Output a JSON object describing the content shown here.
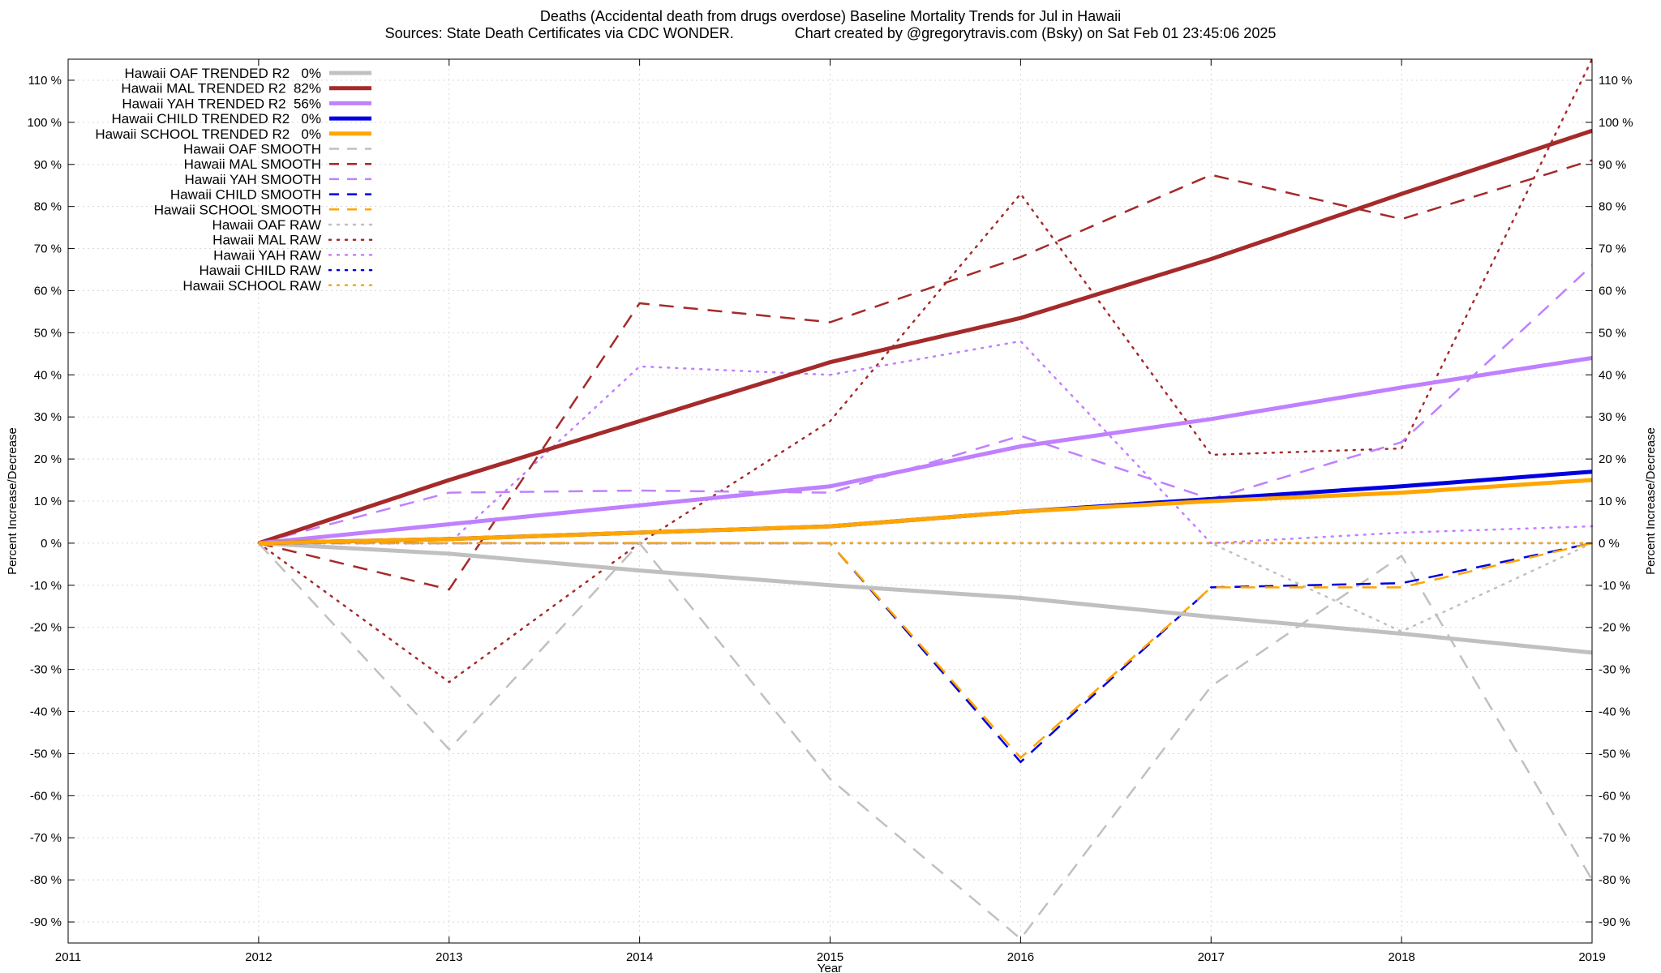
{
  "chart_data": {
    "type": "line",
    "title": "Deaths (Accidental death from drugs overdose)  Baseline Mortality Trends for Jul in Hawaii",
    "subtitle": "Sources: State Death Certificates via CDC WONDER.               Chart created by @gregorytravis.com (Bsky) on Sat Feb 01 23:45:06 2025",
    "xlabel": "Year",
    "ylabel": "Percent Increase/Decrease",
    "y2label": "Percent Increase/Decrease",
    "xlim": [
      2011,
      2019
    ],
    "ylim": [
      -95,
      115
    ],
    "x_ticks": [
      "2011",
      "2012",
      "2013",
      "2014",
      "2015",
      "2016",
      "2017",
      "2018",
      "2019"
    ],
    "y_ticks": [
      "110 %",
      "100 %",
      "90 %",
      "80 %",
      "70 %",
      "60 %",
      "50 %",
      "40 %",
      "30 %",
      "20 %",
      "10 %",
      "0 %",
      "-10 %",
      "-20 %",
      "-30 %",
      "-40 %",
      "-50 %",
      "-60 %",
      "-70 %",
      "-80 %",
      "-90 %"
    ],
    "grid": true,
    "legend_position": "top-left",
    "x": [
      2012,
      2013,
      2014,
      2015,
      2016,
      2017,
      2018,
      2019
    ],
    "series": [
      {
        "name": "Hawaii OAF TRENDED R2   0%",
        "style": "trend",
        "color": "#c0c0c0",
        "values": [
          0,
          -2.5,
          -6.5,
          -10,
          -13,
          -17.5,
          -21.5,
          -26
        ]
      },
      {
        "name": "Hawaii MAL TRENDED R2  82%",
        "style": "trend",
        "color": "#a52a2a",
        "values": [
          0,
          15,
          29,
          43,
          53.5,
          67.5,
          83,
          98
        ]
      },
      {
        "name": "Hawaii YAH TRENDED R2  56%",
        "style": "trend",
        "color": "#c080ff",
        "values": [
          0,
          4.5,
          9,
          13.5,
          23,
          29.5,
          37,
          44
        ]
      },
      {
        "name": "Hawaii CHILD TRENDED R2   0%",
        "style": "trend",
        "color": "#0000e0",
        "values": [
          0,
          1,
          2.5,
          4,
          7.5,
          10.5,
          13.5,
          17
        ]
      },
      {
        "name": "Hawaii SCHOOL TRENDED R2   0%",
        "style": "trend",
        "color": "#ffa500",
        "values": [
          0,
          1,
          2.5,
          4,
          7.5,
          10,
          12,
          15
        ]
      },
      {
        "name": "Hawaii OAF SMOOTH",
        "style": "smooth",
        "color": "#c0c0c0",
        "values": [
          0,
          -49,
          0,
          -56,
          -94,
          -34,
          -3,
          -80
        ]
      },
      {
        "name": "Hawaii MAL SMOOTH",
        "style": "smooth",
        "color": "#a52a2a",
        "values": [
          0,
          -11,
          57,
          52.5,
          68,
          87.5,
          77,
          91
        ]
      },
      {
        "name": "Hawaii YAH SMOOTH",
        "style": "smooth",
        "color": "#c080ff",
        "values": [
          0,
          12,
          12.5,
          12,
          25.5,
          10.5,
          24,
          66
        ]
      },
      {
        "name": "Hawaii CHILD SMOOTH",
        "style": "smooth",
        "color": "#0000e0",
        "values": [
          0,
          0,
          0,
          0,
          -52,
          -10.5,
          -9.5,
          0
        ]
      },
      {
        "name": "Hawaii SCHOOL SMOOTH",
        "style": "smooth",
        "color": "#ffa500",
        "values": [
          0,
          0,
          0,
          0,
          -51,
          -10.5,
          -10.5,
          0
        ]
      },
      {
        "name": "Hawaii OAF RAW",
        "style": "raw",
        "color": "#c0c0c0",
        "values": [
          0,
          0,
          0,
          0,
          0,
          0,
          -21,
          0
        ]
      },
      {
        "name": "Hawaii MAL RAW",
        "style": "raw",
        "color": "#a52a2a",
        "values": [
          0,
          -33,
          0,
          29,
          83,
          21,
          22.5,
          115
        ]
      },
      {
        "name": "Hawaii YAH RAW",
        "style": "raw",
        "color": "#c080ff",
        "values": [
          0,
          0,
          42,
          40,
          48,
          0,
          2.5,
          4
        ]
      },
      {
        "name": "Hawaii CHILD RAW",
        "style": "raw",
        "color": "#0000e0",
        "values": [
          0,
          0,
          0,
          0,
          0,
          0,
          0,
          0
        ]
      },
      {
        "name": "Hawaii SCHOOL RAW",
        "style": "raw",
        "color": "#ffa500",
        "values": [
          0,
          0,
          0,
          0,
          0,
          0,
          0,
          0
        ]
      }
    ]
  }
}
